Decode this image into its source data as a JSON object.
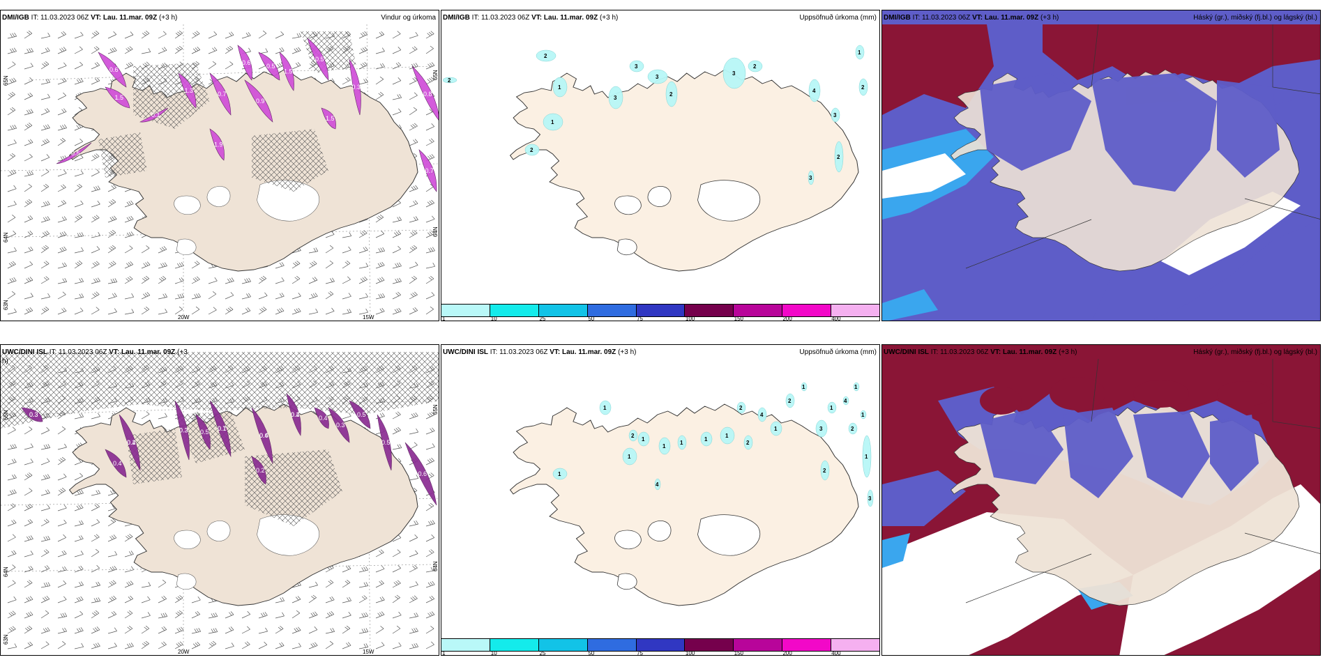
{
  "panels": {
    "top_left": {
      "model": "DMI/IGB",
      "it_label": "IT:",
      "it_value": "11.03.2023 06Z",
      "vt_label": "VT:",
      "vt_value": "Lau. 11.mar. 09Z",
      "lead": "(+3 h)",
      "title": "Vindur og úrkoma",
      "lat_labels": [
        "65N",
        "64N",
        "63N"
      ],
      "lat_labels_right": [
        "65N",
        "64N"
      ],
      "lon_labels": [
        "20W",
        "15W"
      ],
      "precip_labels": [
        "0.6",
        "1.5",
        "0.5",
        "0.1",
        "1.3",
        "0.7",
        "0.9",
        "1.5",
        "0.5",
        "0.3",
        "1.5",
        "0.8",
        "0.7",
        "1.9",
        "0.6",
        "0.5"
      ]
    },
    "top_middle": {
      "model": "DMI/IGB",
      "it_label": "IT:",
      "it_value": "11.03.2023 06Z",
      "vt_label": "VT:",
      "vt_value": "Lau. 11.mar. 09Z",
      "lead": "(+3 h)",
      "title": "Uppsöfnuð úrkoma (mm)",
      "contour_labels": [
        "2",
        "1",
        "1",
        "2",
        "3",
        "3",
        "3",
        "2",
        "3",
        "2",
        "4",
        "3",
        "2",
        "1",
        "2",
        "3",
        "2"
      ],
      "legend_ticks": [
        "1",
        "10",
        "25",
        "50",
        "75",
        "100",
        "150",
        "200",
        "400"
      ]
    },
    "top_right": {
      "model": "DMI/IGB",
      "it_label": "IT:",
      "it_value": "11.03.2023 06Z",
      "vt_label": "VT:",
      "vt_value": "Lau. 11.mar. 09Z",
      "lead": "(+3 h)",
      "title": "Háský (gr.), miðský (fj.bl.) og lágský (bl.)"
    },
    "bottom_left": {
      "model": "UWC/DINI ISL",
      "it_label": "IT:",
      "it_value": "11.03.2023 06Z",
      "vt_label": "VT:",
      "vt_value": "Lau. 11.mar. 09Z",
      "lead": "(+3",
      "lead_cont": "h)",
      "title": "",
      "lat_labels": [
        "65N",
        "64N",
        "63N"
      ],
      "lat_labels_right": [
        "65N",
        "64N"
      ],
      "lon_labels": [
        "20W",
        "15W"
      ],
      "precip_labels": [
        "0.3",
        "0.4",
        "0.3",
        "0.1",
        "0.6",
        "0.4",
        "0.3",
        "0.5",
        "0.6",
        "0.5",
        "0.4",
        "0.2",
        "0.5",
        "0.4",
        "0.3",
        "0.2",
        "0.3",
        "0.7",
        "0.4",
        "0.2"
      ]
    },
    "bottom_middle": {
      "model": "UWC/DINI ISL",
      "it_label": "IT:",
      "it_value": "11.03.2023 06Z",
      "vt_label": "VT:",
      "vt_value": "Lau. 11.mar. 09Z",
      "lead": "(+3 h)",
      "title": "Uppsöfnuð úrkoma (mm)",
      "contour_labels": [
        "1",
        "1",
        "1",
        "1",
        "1",
        "1",
        "1",
        "2",
        "4",
        "1",
        "2",
        "3",
        "2",
        "2",
        "1",
        "1",
        "2",
        "4",
        "1",
        "1",
        "3",
        "4",
        "2",
        "1",
        "1"
      ],
      "legend_ticks": [
        "1",
        "10",
        "25",
        "50",
        "75",
        "100",
        "150",
        "200",
        "400"
      ]
    },
    "bottom_right": {
      "model": "UWC/DINI ISL",
      "it_label": "IT:",
      "it_value": "11.03.2023 06Z",
      "vt_label": "VT:",
      "vt_value": "Lau. 11.mar. 09Z",
      "lead": "(+3 h)",
      "title": "Háský (gr.), miðský (fj.bl.) og lágský (bl.)"
    }
  },
  "legend_colors": [
    "#b9f8f8",
    "#14ebeb",
    "#12c3e7",
    "#2f6ce0",
    "#3037c2",
    "#75004c",
    "#b8059a",
    "#f208c8",
    "#f5b0f0"
  ],
  "colors": {
    "land": "#efe3d6",
    "land_alt": "#fbf0e3",
    "precip_purple": "#d04ed8",
    "precip_dark": "#8a2c92",
    "cloud_high": "#8a1536",
    "cloud_mid": "#5e5dc8",
    "cloud_low": "#3aa6ee",
    "precip_cyan": "#b8f7f7"
  }
}
